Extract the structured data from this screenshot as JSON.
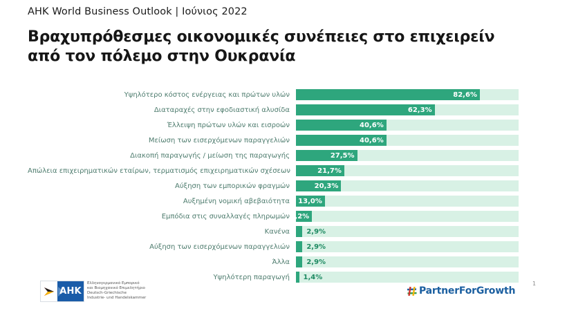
{
  "header": {
    "kicker": "AHK World Business Outlook | Ιούνιος 2022",
    "title_line1": "Βραχυπρόθεσμες οικονομικές συνέπειες στο επιχειρείν",
    "title_line2": "από τον πόλεμο στην Ουκρανία"
  },
  "chart_data": {
    "type": "bar",
    "orientation": "horizontal",
    "title": "Βραχυπρόθεσμες οικονομικές συνέπειες στο επιχειρείν από τον πόλεμο στην Ουκρανία",
    "categories": [
      "Υψηλότερο κόστος ενέργειας και πρώτων υλών",
      "Διαταραχές στην εφοδιαστική αλυσίδα",
      "Έλλειψη πρώτων υλών και εισροών",
      "Μείωση των εισερχόμενων παραγγελιών",
      "Διακοπή παραγωγής / μείωση της παραγωγής",
      "Απώλεια επιχειρηματικών εταίρων, τερματισμός επιχειρηματικών σχέσεων",
      "Αύξηση των εμπορικών φραγμών",
      "Αυξημένη νομική αβεβαιότητα",
      "Εμπόδια στις συναλλαγές πληρωμών",
      "Κανένα",
      "Αύξηση των εισερχόμενων παραγγελιών",
      "Άλλα",
      "Υψηλότερη παραγωγή"
    ],
    "values": [
      82.6,
      62.3,
      40.6,
      40.6,
      27.5,
      21.7,
      20.3,
      13.0,
      7.2,
      2.9,
      2.9,
      2.9,
      1.4
    ],
    "value_labels": [
      "82,6%",
      "62,3%",
      "40,6%",
      "40,6%",
      "27,5%",
      "21,7%",
      "20,3%",
      "13,0%",
      "7,2%",
      "2,9%",
      "2,9%",
      "2,9%",
      "1,4%"
    ],
    "xlim": [
      0,
      100
    ],
    "grid": false,
    "legend": false,
    "bar_color": "#2ea67d",
    "track_color": "#d8f1e5",
    "category_label_color": "#4e7c6e",
    "inside_value_color": "#ffffff",
    "outside_value_color": "#1e8a62",
    "inside_label_threshold": 5
  },
  "footer": {
    "ahk_logo_text": "AHK",
    "ahk_org_lines": [
      "Ελληνογερμανικό Εμπορικό",
      "και Βιομηχανικό Επιμελητήριο",
      "Deutsch-Griechische",
      "Industrie- und Handelskammer"
    ],
    "partner_logo_text": "PartnerForGrowth",
    "page_number": "1"
  },
  "colors": {
    "ahk_blue": "#1a5ca8",
    "partner_blue": "#1b5fa0",
    "flag_black": "#1d1d1b",
    "flag_red": "#d0342c",
    "flag_gold": "#f5b50a",
    "pfg_green": "#3a9d4e"
  }
}
